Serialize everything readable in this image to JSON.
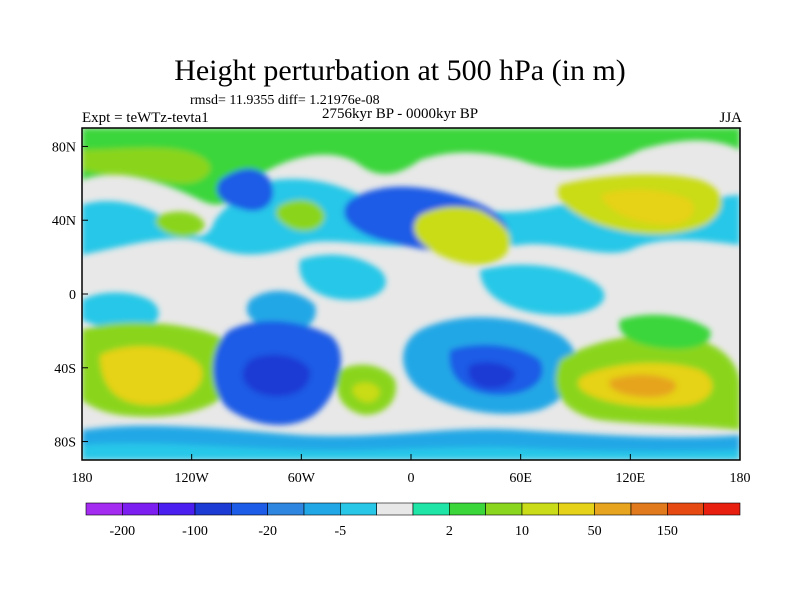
{
  "title": "Height perturbation at 500 hPa (in m)",
  "stats_line": "rmsd= 11.9355 diff= 1.21976e-08",
  "left_label": "Expt = teWTz-tevta1",
  "center_label": "2756kyr BP - 0000kyr BP",
  "right_label": "JJA",
  "y_ticks": [
    "80N",
    "40N",
    "0",
    "40S",
    "80S"
  ],
  "x_ticks": [
    "180",
    "120W",
    "60W",
    "0",
    "60E",
    "120E",
    "180"
  ],
  "colorbar": {
    "colors": [
      "#a32cf0",
      "#7d1ef0",
      "#4a1ff0",
      "#1c3ad4",
      "#1d5ce6",
      "#2f86e0",
      "#21a7e6",
      "#28c7e8",
      "#e8e8e8",
      "#1fe6a6",
      "#3ad63a",
      "#8ad51e",
      "#c9dc17",
      "#e6d219",
      "#e6a41f",
      "#e07a1c",
      "#e64a12",
      "#e81e0f"
    ],
    "labels": [
      "-200",
      "-100",
      "-20",
      "-5",
      "2",
      "10",
      "50",
      "150"
    ]
  }
}
